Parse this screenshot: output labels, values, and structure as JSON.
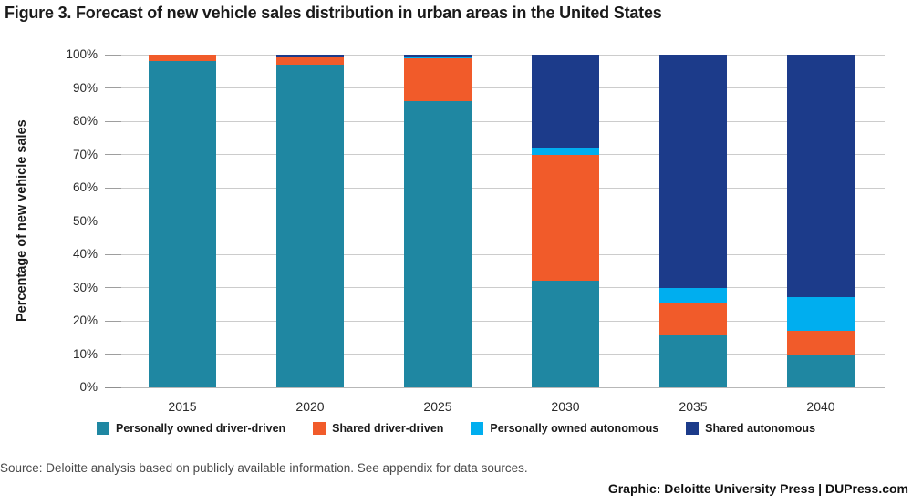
{
  "title": "Figure 3. Forecast of new vehicle sales distribution in urban areas in the United States",
  "chart_data": {
    "type": "bar",
    "stacked": true,
    "title": "Figure 3. Forecast of new vehicle sales distribution in urban areas in the United States",
    "xlabel": "",
    "ylabel": "Percentage of new vehicle sales",
    "ylim": [
      0,
      100
    ],
    "ytick_step": 10,
    "ytick_labels": [
      "0%",
      "10%",
      "20%",
      "30%",
      "40%",
      "50%",
      "60%",
      "70%",
      "80%",
      "90%",
      "100%"
    ],
    "grid": true,
    "legend_position": "bottom",
    "categories": [
      "2015",
      "2020",
      "2025",
      "2030",
      "2035",
      "2040"
    ],
    "series": [
      {
        "name": "Personally owned driver-driven",
        "color": "#1f87a2",
        "values": [
          98,
          97,
          86,
          32,
          15.5,
          10
        ]
      },
      {
        "name": "Shared driver-driven",
        "color": "#f15b2a",
        "values": [
          2,
          2.5,
          13,
          38,
          10,
          7
        ]
      },
      {
        "name": "Personally owned autonomous",
        "color": "#00aeef",
        "values": [
          0,
          0,
          0.5,
          2,
          4.5,
          10
        ]
      },
      {
        "name": "Shared autonomous",
        "color": "#1c3b8a",
        "values": [
          0,
          0.5,
          0.5,
          28,
          70,
          73
        ]
      }
    ]
  },
  "footer": {
    "source": "Source: Deloitte analysis based on publicly available information. See appendix for data sources.",
    "credit": "Graphic: Deloitte University Press | DUPress.com"
  }
}
